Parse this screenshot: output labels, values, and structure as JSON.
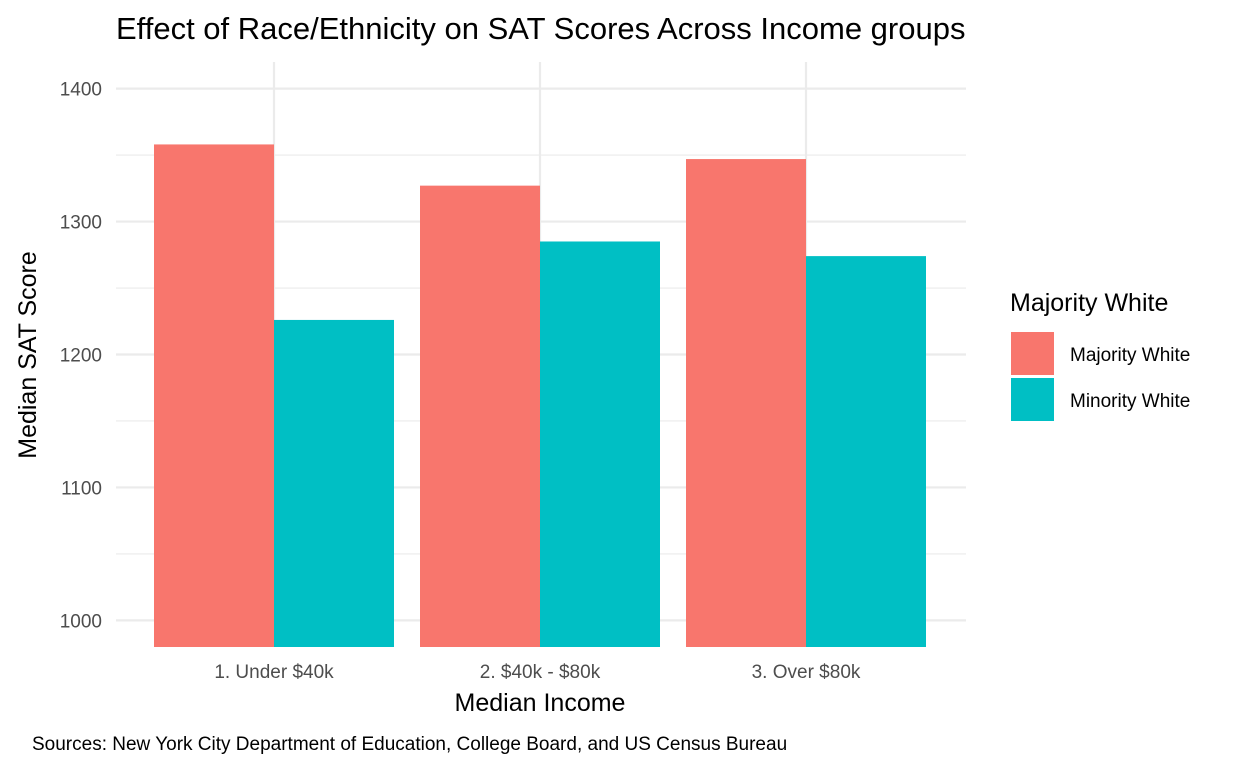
{
  "chart_data": {
    "type": "bar",
    "title": "Effect of Race/Ethnicity on SAT Scores Across Income groups",
    "xlabel": "Median Income",
    "ylabel": "Median SAT Score",
    "caption": "Sources: New York City Department of Education, College Board, and US Census Bureau",
    "categories": [
      "1. Under $40k",
      "2. $40k - $80k",
      "3. Over $80k"
    ],
    "series": [
      {
        "name": "Majority White",
        "color": "#F8766D",
        "values": [
          1358,
          1327,
          1347
        ]
      },
      {
        "name": "Minority White",
        "color": "#00BFC4",
        "values": [
          1226,
          1285,
          1274
        ]
      }
    ],
    "ylim": [
      980,
      1420
    ],
    "yticks": [
      1000,
      1100,
      1200,
      1300,
      1400
    ],
    "grid": true,
    "legend": {
      "title": "Majority White",
      "position": "right"
    }
  }
}
